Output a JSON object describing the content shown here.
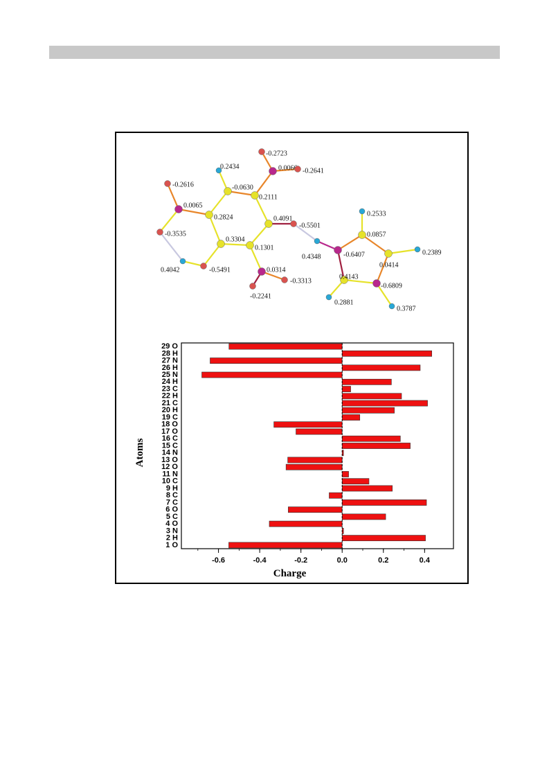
{
  "molecule": {
    "atom_colors": {
      "O": "#d9534f",
      "N": "#b8288c",
      "C": "#e6e22a",
      "H": "#29a8d6"
    },
    "atoms": [
      {
        "id": "a1",
        "el": "O",
        "label": "-0.2723"
      },
      {
        "id": "a2",
        "el": "N",
        "label": "0.0066"
      },
      {
        "id": "a3",
        "el": "O",
        "label": "-0.2641"
      },
      {
        "id": "a4",
        "el": "H",
        "label": "0.2434"
      },
      {
        "id": "a5",
        "el": "C",
        "label": "-0.0630"
      },
      {
        "id": "a6",
        "el": "C",
        "label": "0.2111"
      },
      {
        "id": "a7",
        "el": "O",
        "label": "-0.2616"
      },
      {
        "id": "a8",
        "el": "N",
        "label": "0.0065"
      },
      {
        "id": "a9",
        "el": "C",
        "label": "0.2824"
      },
      {
        "id": "a10",
        "el": "C",
        "label": "0.4091"
      },
      {
        "id": "a11",
        "el": "O",
        "label": "-0.5501"
      },
      {
        "id": "a12",
        "el": "O",
        "label": "-0.3535"
      },
      {
        "id": "a13",
        "el": "C",
        "label": "0.3304"
      },
      {
        "id": "a14",
        "el": "C",
        "label": "0.1301"
      },
      {
        "id": "a15",
        "el": "H",
        "label": "0.4042"
      },
      {
        "id": "a16",
        "el": "O",
        "label": "-0.5491"
      },
      {
        "id": "a17",
        "el": "N",
        "label": "0.0314"
      },
      {
        "id": "a18",
        "el": "O",
        "label": "-0.3313"
      },
      {
        "id": "a19",
        "el": "O",
        "label": "-0.2241"
      },
      {
        "id": "a20",
        "el": "H",
        "label": "0.4348"
      },
      {
        "id": "a21",
        "el": "N",
        "label": "-0.6407"
      },
      {
        "id": "a22",
        "el": "H",
        "label": "0.2533"
      },
      {
        "id": "a23",
        "el": "C",
        "label": "0.0857"
      },
      {
        "id": "a24",
        "el": "C",
        "label": "0.0414"
      },
      {
        "id": "a25",
        "el": "H",
        "label": "0.2389"
      },
      {
        "id": "a26",
        "el": "C",
        "label": "0.4143"
      },
      {
        "id": "a27",
        "el": "N",
        "label": "-0.6809"
      },
      {
        "id": "a28",
        "el": "H",
        "label": "0.2881"
      },
      {
        "id": "a29",
        "el": "H",
        "label": "0.3787"
      }
    ]
  },
  "chart_data": {
    "type": "bar",
    "orientation": "horizontal",
    "xlabel": "Charge",
    "ylabel": "Atoms",
    "xlim": [
      -0.78,
      0.54
    ],
    "x_ticks": [
      "-0.6",
      "-0.4",
      "-0.2",
      "0.0",
      "0.2",
      "0.4"
    ],
    "x_tick_values": [
      -0.6,
      -0.4,
      -0.2,
      0.0,
      0.2,
      0.4
    ],
    "bar_color": "#ee1111",
    "categories": [
      "1 O",
      "2 H",
      "3 N",
      "4 O",
      "5 C",
      "6 O",
      "7 C",
      "8 C",
      "9 H",
      "10 C",
      "11 N",
      "12 O",
      "13 O",
      "14 N",
      "15 C",
      "16 C",
      "17 O",
      "18 O",
      "19 C",
      "20 H",
      "21 C",
      "22 H",
      "23 C",
      "24 H",
      "25 N",
      "26 H",
      "27 N",
      "28 H",
      "29 O"
    ],
    "values": [
      -0.5501,
      0.4042,
      0.0066,
      -0.3535,
      0.2111,
      -0.2616,
      0.4091,
      -0.063,
      0.2434,
      0.1301,
      0.0314,
      -0.2723,
      -0.2641,
      0.0065,
      0.3304,
      0.2824,
      -0.2241,
      -0.3313,
      0.0857,
      0.2533,
      0.4143,
      0.2881,
      0.0414,
      0.2389,
      -0.6809,
      0.3787,
      -0.6407,
      0.4348,
      -0.5491
    ]
  }
}
